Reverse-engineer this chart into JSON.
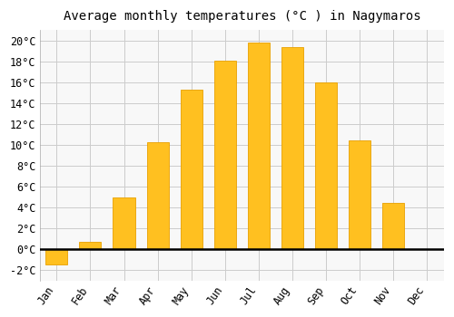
{
  "title": "Average monthly temperatures (°C ) in Nagymaros",
  "months": [
    "Jan",
    "Feb",
    "Mar",
    "Apr",
    "May",
    "Jun",
    "Jul",
    "Aug",
    "Sep",
    "Oct",
    "Nov",
    "Dec"
  ],
  "values": [
    -1.5,
    0.7,
    5.0,
    10.3,
    15.3,
    18.1,
    19.8,
    19.4,
    16.0,
    10.4,
    4.4,
    0.0
  ],
  "bar_color_pos": "#FFC020",
  "bar_color_neg": "#FFC020",
  "ylim": [
    -3,
    21
  ],
  "yticks": [
    -2,
    0,
    2,
    4,
    6,
    8,
    10,
    12,
    14,
    16,
    18,
    20
  ],
  "ytick_labels": [
    "-2°C",
    "0°C",
    "2°C",
    "4°C",
    "6°C",
    "8°C",
    "10°C",
    "12°C",
    "14°C",
    "16°C",
    "18°C",
    "20°C"
  ],
  "background_color": "#ffffff",
  "plot_bg_color": "#f8f8f8",
  "grid_color": "#cccccc",
  "title_fontsize": 10,
  "tick_fontsize": 8.5,
  "bar_edge_color": "#E8A000",
  "bar_width": 0.65
}
